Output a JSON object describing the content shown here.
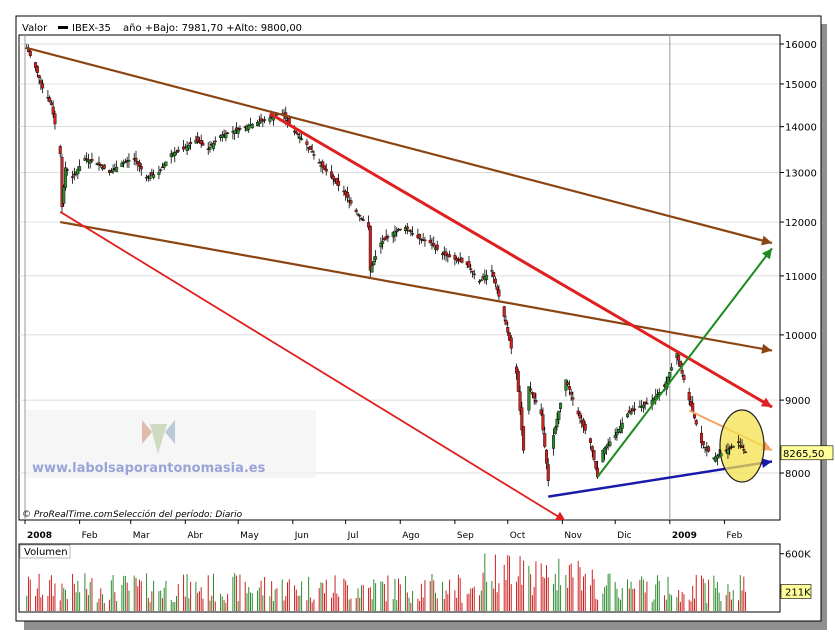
{
  "header": {
    "label": "Valor",
    "series_name": "IBEX-35",
    "range_text": "año +Bajo: 7981,70 +Alto: 9800,00"
  },
  "footer": {
    "credit": "© ProRealTime.com",
    "period": "Selección del período: Diario"
  },
  "watermark": {
    "text": "www.labolsaporantonomasia.es"
  },
  "volume": {
    "label": "Volumen",
    "axis_ticks": [
      "600K",
      "211K"
    ],
    "last_label": "211K"
  },
  "colors": {
    "price_line": "#000000",
    "up_candle": "#2e8b2e",
    "down_candle": "#cc2222",
    "channel_brown": "#8b4513",
    "downtrend_red": "#e02020",
    "uptrend_green": "#1e8b1e",
    "support_blue": "#1a1aaa",
    "orange_line": "#f4a460",
    "highlight_yellow": "#f4e24c",
    "last_price_tag": "#ffff99"
  },
  "chart_data": {
    "type": "line",
    "title": "IBEX-35",
    "y_scale": "log",
    "ylim": [
      7400,
      16400
    ],
    "y_ticks": [
      16000,
      15000,
      14000,
      13000,
      12000,
      11000,
      10000,
      9000,
      8000
    ],
    "y_tick_labels": [
      "16000",
      "15000",
      "14000",
      "13000",
      "12000",
      "11000",
      "10000",
      "9000",
      "8000"
    ],
    "last_value": 8265.5,
    "last_value_label": "8265,50",
    "x_labels": [
      "2008",
      "Feb",
      "Mar",
      "Abr",
      "May",
      "Jun",
      "Jul",
      "Ago",
      "Sep",
      "Oct",
      "Nov",
      "Dic",
      "2009",
      "Feb"
    ],
    "x_label_bold": [
      "2008",
      "2009"
    ],
    "series": [
      {
        "name": "IBEX-35",
        "x": [
          "2008-01-02",
          "2008-01-07",
          "2008-01-11",
          "2008-01-16",
          "2008-01-21",
          "2008-01-22",
          "2008-01-24",
          "2008-01-28",
          "2008-02-04",
          "2008-02-11",
          "2008-02-18",
          "2008-02-25",
          "2008-03-03",
          "2008-03-10",
          "2008-03-17",
          "2008-03-24",
          "2008-03-31",
          "2008-04-07",
          "2008-04-14",
          "2008-04-21",
          "2008-04-28",
          "2008-05-05",
          "2008-05-12",
          "2008-05-19",
          "2008-05-26",
          "2008-06-02",
          "2008-06-09",
          "2008-06-16",
          "2008-06-23",
          "2008-06-30",
          "2008-07-07",
          "2008-07-14",
          "2008-07-15",
          "2008-07-21",
          "2008-07-28",
          "2008-08-04",
          "2008-08-11",
          "2008-08-18",
          "2008-08-25",
          "2008-09-01",
          "2008-09-08",
          "2008-09-15",
          "2008-09-22",
          "2008-09-29",
          "2008-10-06",
          "2008-10-10",
          "2008-10-13",
          "2008-10-20",
          "2008-10-24",
          "2008-10-27",
          "2008-11-03",
          "2008-11-10",
          "2008-11-17",
          "2008-11-21",
          "2008-11-24",
          "2008-12-01",
          "2008-12-08",
          "2008-12-15",
          "2008-12-22",
          "2008-12-29",
          "2009-01-05",
          "2009-01-12",
          "2009-01-19",
          "2009-01-26",
          "2009-02-02",
          "2009-02-09",
          "2009-02-13"
        ],
        "values": [
          15900,
          15400,
          14900,
          14500,
          13400,
          12300,
          13100,
          12900,
          13300,
          13200,
          13000,
          13200,
          13300,
          12900,
          13000,
          13400,
          13500,
          13700,
          13500,
          13800,
          13900,
          14000,
          14100,
          14200,
          14300,
          13900,
          13600,
          13200,
          12900,
          12600,
          12200,
          11900,
          11100,
          11600,
          11800,
          11900,
          11700,
          11600,
          11400,
          11300,
          11200,
          10900,
          11100,
          10300,
          9400,
          8300,
          9200,
          8800,
          7900,
          8500,
          9300,
          8800,
          8400,
          7950,
          8300,
          8500,
          8800,
          8900,
          9000,
          9200,
          9700,
          9000,
          8400,
          8200,
          8300,
          8400,
          8265.5
        ]
      }
    ],
    "volume_series": {
      "name": "Volumen",
      "ylim": [
        0,
        700000
      ],
      "y_ticks": [
        600000,
        211000
      ]
    },
    "trendlines": [
      {
        "name": "upper-channel-brown",
        "from": [
          "2008-01-02",
          15900
        ],
        "to": [
          "2009-02-28",
          11600
        ]
      },
      {
        "name": "lower-channel-brown",
        "from": [
          "2008-01-21",
          12000
        ],
        "to": [
          "2009-02-28",
          9750
        ]
      },
      {
        "name": "downtrend-red-upper",
        "from": [
          "2008-05-19",
          14300
        ],
        "to": [
          "2009-02-28",
          8900
        ]
      },
      {
        "name": "downtrend-red-lower",
        "from": [
          "2008-01-21",
          12200
        ],
        "to": [
          "2008-11-03",
          7400
        ]
      },
      {
        "name": "uptrend-green",
        "from": [
          "2008-11-21",
          7950
        ],
        "to": [
          "2009-02-28",
          11500
        ]
      },
      {
        "name": "support-blue",
        "from": [
          "2008-10-24",
          7700
        ],
        "to": [
          "2009-02-28",
          8150
        ]
      },
      {
        "name": "short-orange",
        "from": [
          "2009-01-12",
          8850
        ],
        "to": [
          "2009-02-28",
          8300
        ]
      }
    ]
  }
}
